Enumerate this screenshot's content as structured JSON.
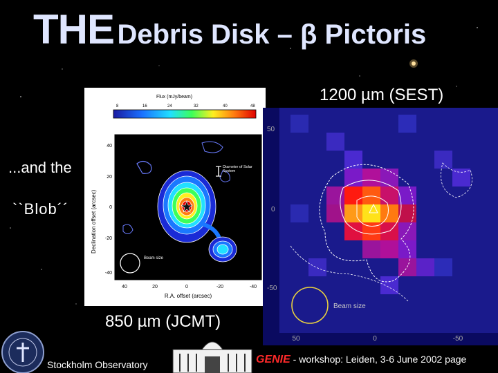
{
  "title": {
    "big": "THE",
    "rest": "Debris Disk – β Pictoris"
  },
  "labels": {
    "sest": "1200 µm (SEST)",
    "jcmt": "850 µm (JCMT)",
    "and_the": "...and the",
    "blob": "``Blob´´"
  },
  "jcmt_panel": {
    "colorbar_title": "Flux (mJy/beam)",
    "colorbar_ticks": [
      "8",
      "16",
      "24",
      "32",
      "40",
      "48"
    ],
    "y_ticks": [
      "40",
      "20",
      "0",
      "-20",
      "-40"
    ],
    "x_ticks": [
      "40",
      "20",
      "0",
      "-20",
      "-40"
    ],
    "y_label": "Declination offset (arcsec)",
    "x_label": "R.A. offset (arcsec)",
    "scale_note": "Diameter of Solar System",
    "beam_label": "Beam size"
  },
  "sest_panel": {
    "y_ticks": [
      "50",
      "0",
      "-50"
    ],
    "x_ticks": [
      "50",
      "0",
      "-50"
    ],
    "beam_label": "Beam size"
  },
  "footer": {
    "observatory": "Stockholm Observatory",
    "genie": "GENIE",
    "workshop": " - workshop: Leiden, 3-6 June 2002 page"
  },
  "colors": {
    "title": "#dfe6ff",
    "genie": "#ff2a2a",
    "sest_bg": "#0a0a60"
  }
}
